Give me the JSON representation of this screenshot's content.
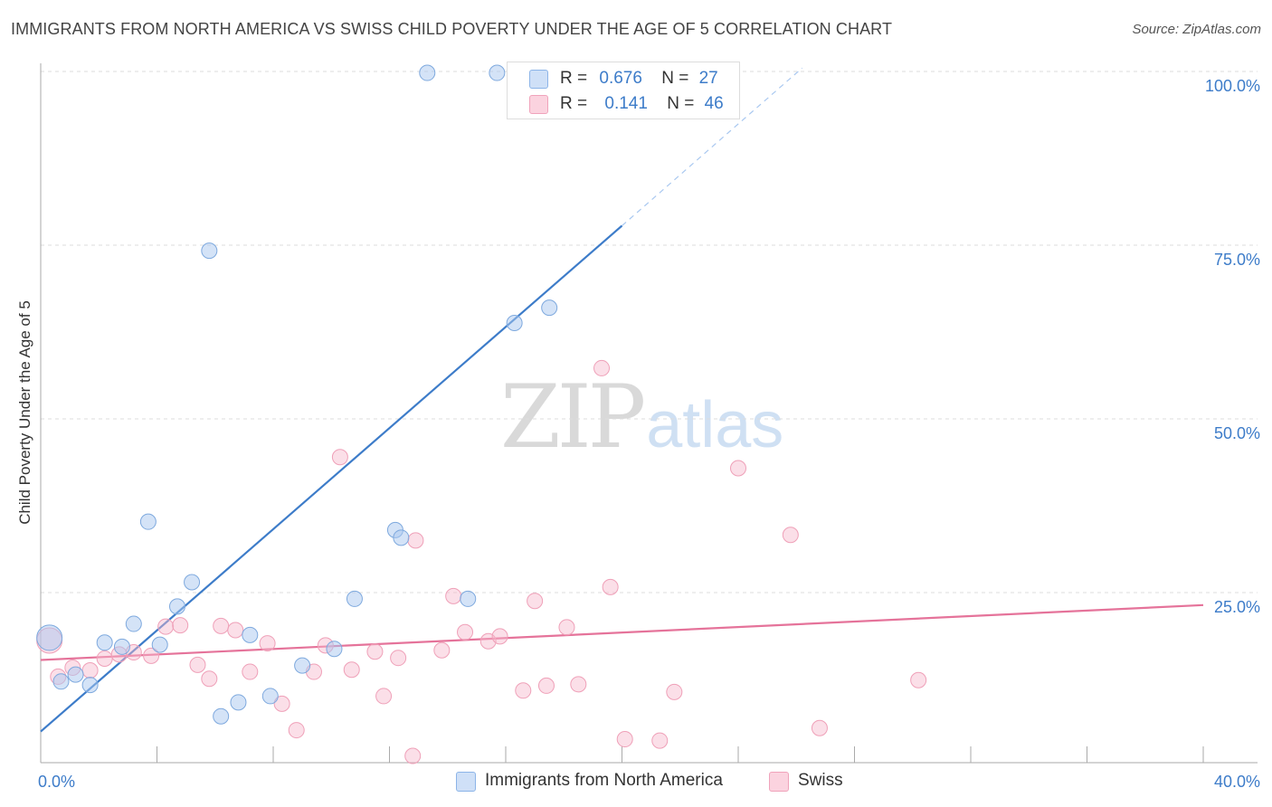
{
  "header": {
    "title": "IMMIGRANTS FROM NORTH AMERICA VS SWISS CHILD POVERTY UNDER THE AGE OF 5 CORRELATION CHART",
    "source": "Source: ZipAtlas.com"
  },
  "watermark": {
    "zip": "ZIP",
    "atlas": "atlas"
  },
  "legend": {
    "rows": [
      {
        "r_label": "R =",
        "r_value": "0.676",
        "n_label": "N =",
        "n_value": "27",
        "color": "#a9c8f0"
      },
      {
        "r_label": "R =",
        "r_value": "0.141",
        "n_label": "N =",
        "n_value": "46",
        "color": "#f7b9cc"
      }
    ]
  },
  "bottom_legend": [
    "Immigrants from North America",
    "Swiss"
  ],
  "chart_data": {
    "type": "scatter",
    "title": "IMMIGRANTS FROM NORTH AMERICA VS SWISS CHILD POVERTY UNDER THE AGE OF 5 CORRELATION CHART",
    "xlabel": "",
    "ylabel": "Child Poverty Under the Age of 5",
    "xlim": [
      0,
      40
    ],
    "ylim": [
      0,
      102
    ],
    "x_tick_labels": [
      "0.0%",
      "40.0%"
    ],
    "y_tick_labels": [
      "25.0%",
      "50.0%",
      "75.0%",
      "100.0%"
    ],
    "y_ticks": [
      25,
      50,
      75,
      100
    ],
    "grid": true,
    "legend_position": "top-center",
    "colors": {
      "blue": "#3d7cc9",
      "blue_fill": "#a9c8f0",
      "pink": "#e5739a",
      "pink_fill": "#f7b9cc",
      "axis_text": "#3d7cc9"
    },
    "series": [
      {
        "name": "Immigrants from North America",
        "r": 0.676,
        "n": 27,
        "points": [
          [
            0.3,
            18.5
          ],
          [
            0.7,
            12.2
          ],
          [
            1.2,
            13.2
          ],
          [
            1.7,
            11.7
          ],
          [
            2.2,
            17.8
          ],
          [
            2.8,
            17.2
          ],
          [
            3.2,
            20.5
          ],
          [
            3.7,
            35.2
          ],
          [
            4.1,
            17.5
          ],
          [
            4.7,
            23.0
          ],
          [
            5.2,
            26.5
          ],
          [
            5.8,
            74.2
          ],
          [
            6.2,
            7.2
          ],
          [
            6.8,
            9.2
          ],
          [
            7.2,
            18.9
          ],
          [
            7.9,
            10.1
          ],
          [
            9.0,
            14.5
          ],
          [
            10.1,
            16.9
          ],
          [
            10.8,
            24.1
          ],
          [
            12.2,
            34.0
          ],
          [
            12.4,
            32.9
          ],
          [
            13.3,
            99.8
          ],
          [
            14.7,
            24.1
          ],
          [
            15.7,
            99.8
          ],
          [
            16.3,
            63.8
          ],
          [
            17.1,
            99.8
          ],
          [
            17.5,
            66.0
          ]
        ],
        "trend": {
          "x": [
            0.0,
            20.0
          ],
          "y": [
            5.0,
            77.8
          ],
          "dashed_x": [
            20.0,
            26.2
          ],
          "dashed_y": [
            77.8,
            100.5
          ]
        }
      },
      {
        "name": "Swiss",
        "r": 0.141,
        "n": 46,
        "points": [
          [
            0.3,
            18.1
          ],
          [
            0.6,
            12.9
          ],
          [
            1.1,
            14.2
          ],
          [
            1.7,
            13.8
          ],
          [
            2.2,
            15.5
          ],
          [
            2.7,
            16.1
          ],
          [
            3.2,
            16.4
          ],
          [
            3.8,
            15.9
          ],
          [
            4.3,
            20.1
          ],
          [
            4.8,
            20.3
          ],
          [
            5.4,
            14.6
          ],
          [
            5.8,
            12.6
          ],
          [
            6.2,
            20.2
          ],
          [
            6.7,
            19.6
          ],
          [
            7.2,
            13.6
          ],
          [
            7.8,
            17.7
          ],
          [
            8.3,
            9.0
          ],
          [
            8.8,
            5.2
          ],
          [
            9.4,
            13.6
          ],
          [
            9.8,
            17.4
          ],
          [
            10.3,
            44.5
          ],
          [
            10.7,
            13.9
          ],
          [
            11.5,
            16.5
          ],
          [
            11.8,
            10.1
          ],
          [
            12.3,
            15.6
          ],
          [
            12.8,
            1.5
          ],
          [
            12.9,
            32.5
          ],
          [
            13.8,
            16.7
          ],
          [
            14.2,
            24.5
          ],
          [
            14.6,
            19.3
          ],
          [
            15.4,
            18.0
          ],
          [
            15.8,
            18.7
          ],
          [
            16.6,
            10.9
          ],
          [
            17.0,
            23.8
          ],
          [
            17.4,
            11.6
          ],
          [
            18.1,
            20.0
          ],
          [
            18.5,
            11.8
          ],
          [
            19.3,
            57.3
          ],
          [
            19.6,
            25.8
          ],
          [
            20.1,
            3.9
          ],
          [
            21.3,
            3.7
          ],
          [
            21.8,
            10.7
          ],
          [
            24.0,
            42.9
          ],
          [
            25.8,
            33.3
          ],
          [
            26.8,
            5.5
          ],
          [
            30.2,
            12.4
          ]
        ],
        "trend": {
          "x": [
            0.0,
            40.0
          ],
          "y": [
            15.3,
            23.2
          ]
        }
      }
    ]
  }
}
